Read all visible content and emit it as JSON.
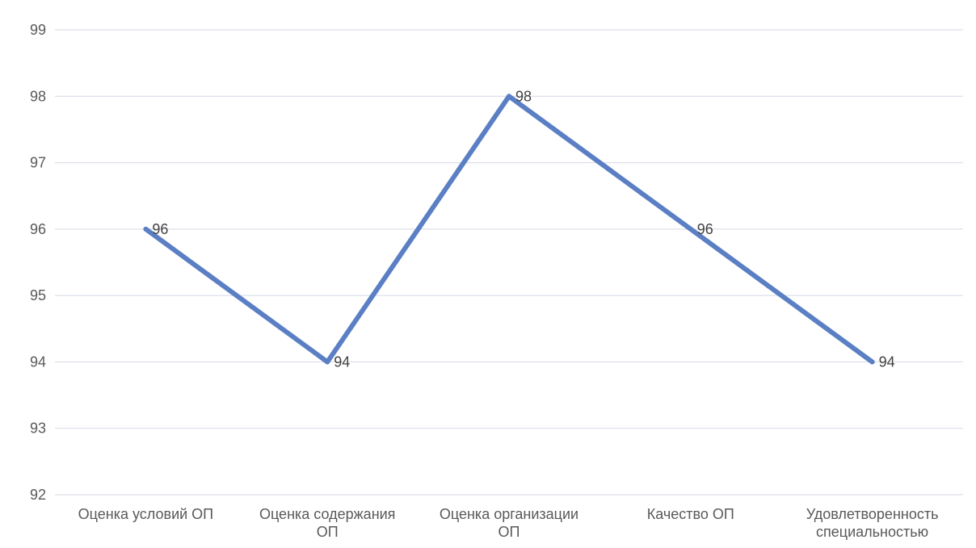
{
  "chart_data": {
    "type": "line",
    "title": "",
    "xlabel": "",
    "ylabel": "",
    "categories": [
      [
        "Оценка условий ОП"
      ],
      [
        "Оценка содержания",
        "ОП"
      ],
      [
        "Оценка организации",
        "ОП"
      ],
      [
        "Качество ОП"
      ],
      [
        "Удовлетворенность",
        "специальностью"
      ]
    ],
    "series": [
      {
        "values": [
          96,
          94,
          98,
          96,
          94
        ],
        "color": "#5b7fc4"
      }
    ],
    "data_labels": [
      "96",
      "94",
      "98",
      "96",
      "94"
    ],
    "yticks": [
      "92",
      "93",
      "94",
      "95",
      "96",
      "97",
      "98",
      "99"
    ],
    "ylim": [
      92,
      99
    ],
    "grid": "horizontal",
    "legend": "none"
  }
}
